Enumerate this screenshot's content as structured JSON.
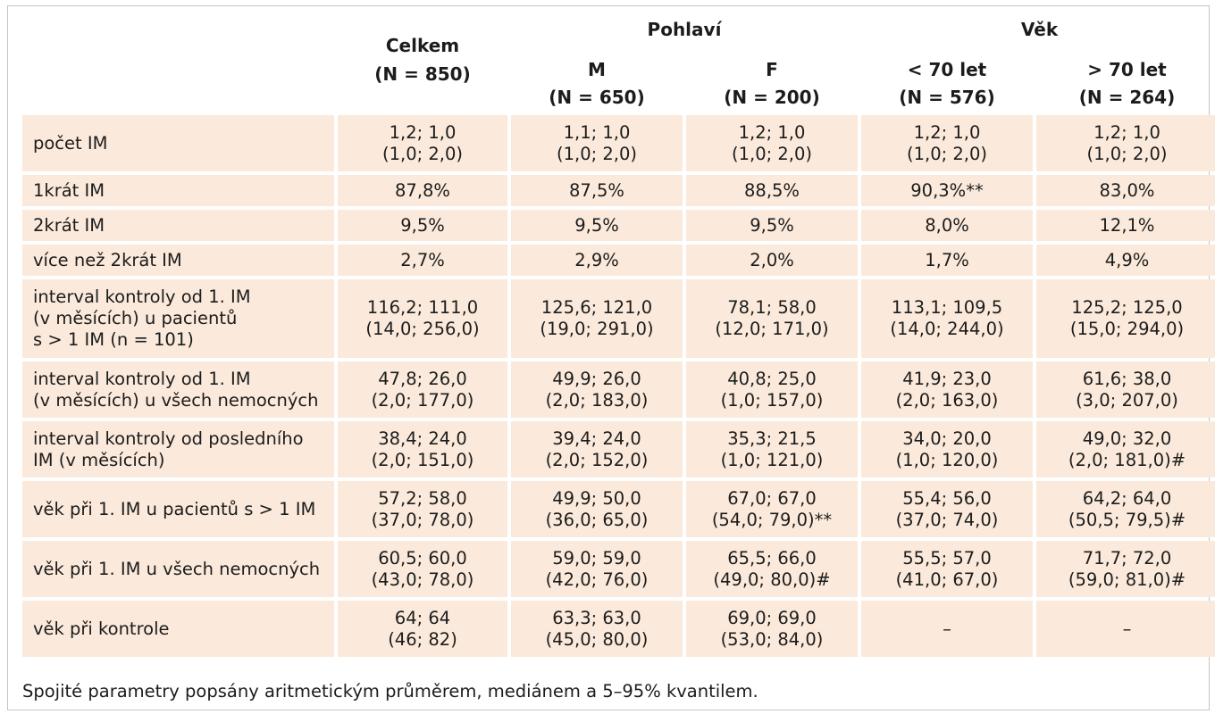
{
  "header": {
    "celkem": {
      "title": "Celkem",
      "n": "(N = 850)"
    },
    "pohlavi": {
      "title": "Pohlaví"
    },
    "m": {
      "title": "M",
      "n": "(N = 650)"
    },
    "f": {
      "title": "F",
      "n": "(N = 200)"
    },
    "vek": {
      "title": "Věk"
    },
    "under70": {
      "title": "< 70 let",
      "n": "(N = 576)"
    },
    "over70": {
      "title": "> 70 let",
      "n": "(N = 264)"
    }
  },
  "rows": [
    {
      "label": [
        "počet IM"
      ],
      "cells": [
        [
          "1,2; 1,0",
          "(1,0; 2,0)"
        ],
        [
          "1,1; 1,0",
          "(1,0; 2,0)"
        ],
        [
          "1,2; 1,0",
          "(1,0; 2,0)"
        ],
        [
          "1,2; 1,0",
          "(1,0; 2,0)"
        ],
        [
          "1,2; 1,0",
          "(1,0; 2,0)"
        ]
      ]
    },
    {
      "label": [
        "1krát IM"
      ],
      "cells": [
        [
          "87,8%"
        ],
        [
          "87,5%"
        ],
        [
          "88,5%"
        ],
        [
          "90,3%**"
        ],
        [
          "83,0%"
        ]
      ]
    },
    {
      "label": [
        "2krát IM"
      ],
      "cells": [
        [
          "9,5%"
        ],
        [
          "9,5%"
        ],
        [
          "9,5%"
        ],
        [
          "8,0%"
        ],
        [
          "12,1%"
        ]
      ]
    },
    {
      "label": [
        "více než 2krát IM"
      ],
      "cells": [
        [
          "2,7%"
        ],
        [
          "2,9%"
        ],
        [
          "2,0%"
        ],
        [
          "1,7%"
        ],
        [
          "4,9%"
        ]
      ]
    },
    {
      "label": [
        "interval kontroly od 1. IM",
        "(v měsících) u pacientů",
        "s > 1 IM (n = 101)"
      ],
      "cells": [
        [
          "116,2; 111,0",
          "(14,0; 256,0)"
        ],
        [
          "125,6; 121,0",
          "(19,0; 291,0)"
        ],
        [
          "78,1; 58,0",
          "(12,0; 171,0)"
        ],
        [
          "113,1; 109,5",
          "(14,0; 244,0)"
        ],
        [
          "125,2; 125,0",
          "(15,0; 294,0)"
        ]
      ]
    },
    {
      "label": [
        "interval kontroly od 1. IM",
        "(v měsících) u všech nemocných"
      ],
      "cells": [
        [
          "47,8; 26,0",
          "(2,0; 177,0)"
        ],
        [
          "49,9; 26,0",
          "(2,0; 183,0)"
        ],
        [
          "40,8; 25,0",
          "(1,0; 157,0)"
        ],
        [
          "41,9; 23,0",
          "(2,0; 163,0)"
        ],
        [
          "61,6; 38,0",
          "(3,0; 207,0)"
        ]
      ]
    },
    {
      "label": [
        "interval kontroly od posledního",
        "IM (v měsících)"
      ],
      "cells": [
        [
          "38,4; 24,0",
          "(2,0; 151,0)"
        ],
        [
          "39,4; 24,0",
          "(2,0; 152,0)"
        ],
        [
          "35,3; 21,5",
          "(1,0; 121,0)"
        ],
        [
          "34,0; 20,0",
          "(1,0; 120,0)"
        ],
        [
          "49,0; 32,0",
          "(2,0; 181,0)#"
        ]
      ]
    },
    {
      "label": [
        "věk při 1. IM u pacientů s > 1 IM"
      ],
      "cells": [
        [
          "57,2; 58,0",
          "(37,0; 78,0)"
        ],
        [
          "49,9; 50,0",
          "(36,0; 65,0)"
        ],
        [
          "67,0; 67,0",
          "(54,0; 79,0)**"
        ],
        [
          "55,4; 56,0",
          "(37,0; 74,0)"
        ],
        [
          "64,2; 64,0",
          "(50,5; 79,5)#"
        ]
      ]
    },
    {
      "label": [
        "věk při 1. IM u všech nemocných"
      ],
      "cells": [
        [
          "60,5; 60,0",
          "(43,0; 78,0)"
        ],
        [
          "59,0; 59,0",
          "(42,0; 76,0)"
        ],
        [
          "65,5; 66,0",
          "(49,0; 80,0)#"
        ],
        [
          "55,5; 57,0",
          "(41,0; 67,0)"
        ],
        [
          "71,7; 72,0",
          "(59,0; 81,0)#"
        ]
      ]
    },
    {
      "label": [
        "věk při kontrole"
      ],
      "cells": [
        [
          "64; 64",
          "(46; 82)"
        ],
        [
          "63,3; 63,0",
          "(45,0; 80,0)"
        ],
        [
          "69,0; 69,0",
          "(53,0; 84,0)"
        ],
        [
          "–"
        ],
        [
          "–"
        ]
      ]
    }
  ],
  "footnote": "Spojité parametry popsány aritmetickým průměrem, mediánem a 5–95% kvantilem.",
  "colors": {
    "cell_background": "#fbeadb",
    "border": "#c8c4c0",
    "text": "#1c1c1c"
  }
}
